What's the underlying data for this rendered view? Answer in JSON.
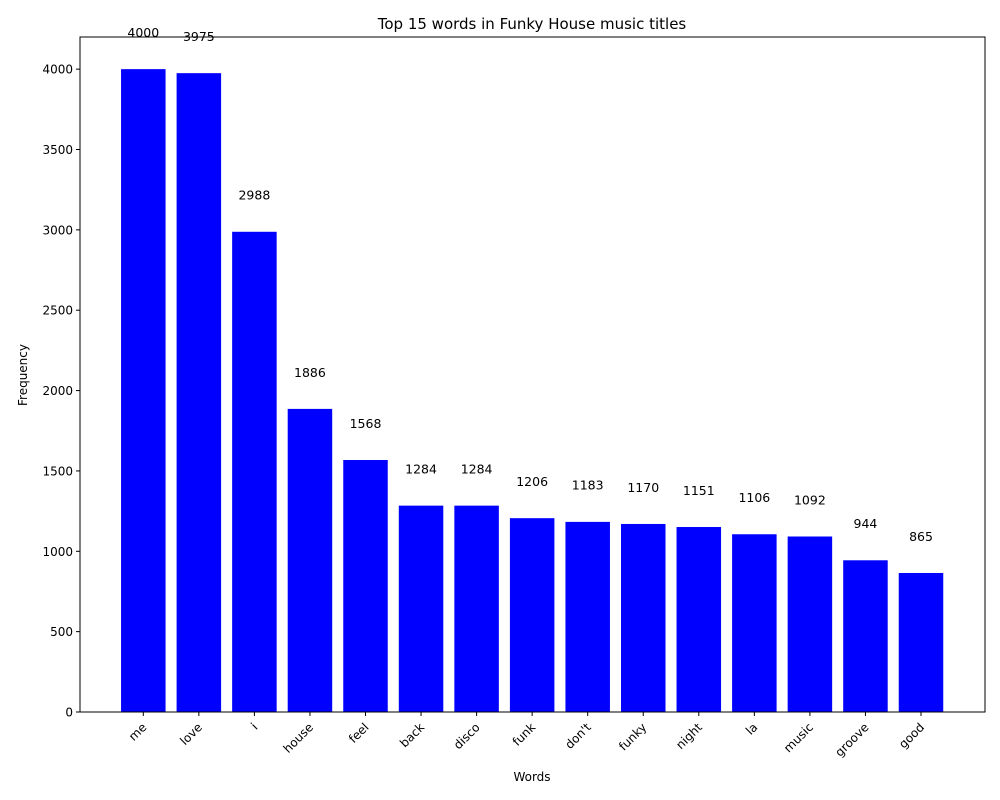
{
  "chart_data": {
    "type": "bar",
    "title": "Top 15 words in Funky House music titles",
    "xlabel": "Words",
    "ylabel": "Frequency",
    "categories": [
      "me",
      "love",
      "i",
      "house",
      "feel",
      "back",
      "disco",
      "funk",
      "don't",
      "funky",
      "night",
      "la",
      "music",
      "groove",
      "good"
    ],
    "values": [
      4000,
      3975,
      2988,
      1886,
      1568,
      1284,
      1284,
      1206,
      1183,
      1170,
      1151,
      1106,
      1092,
      944,
      865
    ],
    "ylim": [
      0,
      4200
    ],
    "yticks": [
      0,
      500,
      1000,
      1500,
      2000,
      2500,
      3000,
      3500,
      4000
    ],
    "bar_color": "#0000ff",
    "grid": false,
    "legend": "none"
  }
}
